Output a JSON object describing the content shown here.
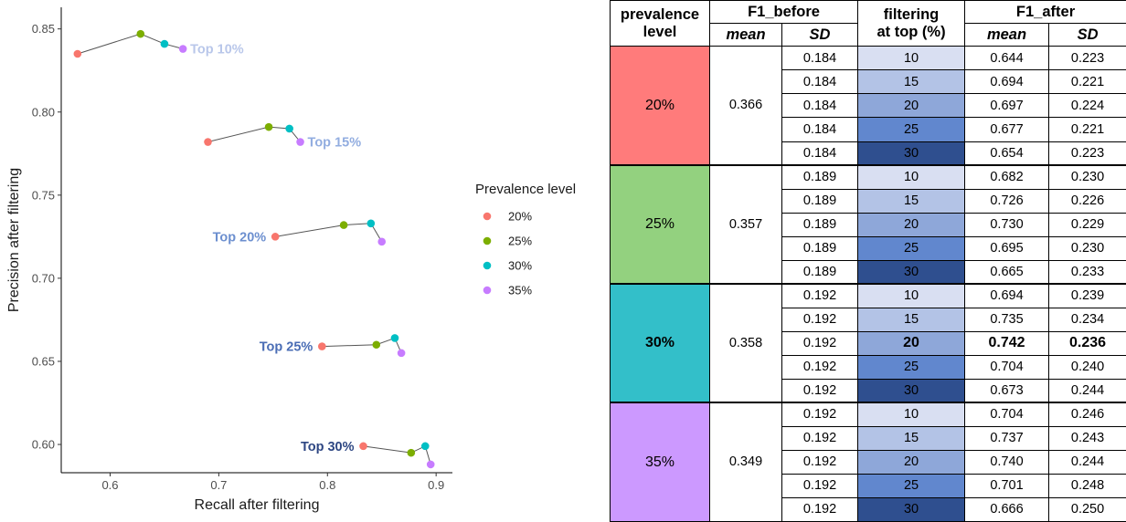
{
  "chart_data": {
    "type": "scatter",
    "xlabel": "Recall after filtering",
    "ylabel": "Precision after filtering",
    "xlim": [
      0.555,
      0.915
    ],
    "ylim": [
      0.583,
      0.863
    ],
    "x_ticks": [
      "0.6",
      "0.7",
      "0.8",
      "0.9"
    ],
    "y_ticks": [
      "0.60",
      "0.65",
      "0.70",
      "0.75",
      "0.80",
      "0.85"
    ],
    "grid": false,
    "legend_title": "Prevalence level",
    "legend_position": "right",
    "series": [
      {
        "name": "20%",
        "color": "#F8766D"
      },
      {
        "name": "25%",
        "color": "#7CAE00"
      },
      {
        "name": "30%",
        "color": "#00BFC4"
      },
      {
        "name": "35%",
        "color": "#C77CFF"
      }
    ],
    "groups": [
      {
        "label": "Top 10%",
        "color": "#B9C7EA",
        "label_side": "right",
        "points": [
          [
            0.57,
            0.835
          ],
          [
            0.628,
            0.847
          ],
          [
            0.65,
            0.841
          ],
          [
            0.667,
            0.838
          ]
        ]
      },
      {
        "label": "Top 15%",
        "color": "#92ADE0",
        "label_side": "right",
        "points": [
          [
            0.69,
            0.782
          ],
          [
            0.746,
            0.791
          ],
          [
            0.765,
            0.79
          ],
          [
            0.775,
            0.782
          ]
        ]
      },
      {
        "label": "Top 20%",
        "color": "#6C8FCF",
        "label_side": "left",
        "points": [
          [
            0.752,
            0.725
          ],
          [
            0.815,
            0.732
          ],
          [
            0.84,
            0.733
          ],
          [
            0.85,
            0.722
          ]
        ]
      },
      {
        "label": "Top 25%",
        "color": "#4A6DB5",
        "label_side": "left",
        "points": [
          [
            0.795,
            0.659
          ],
          [
            0.845,
            0.66
          ],
          [
            0.862,
            0.664
          ],
          [
            0.868,
            0.655
          ]
        ]
      },
      {
        "label": "Top 30%",
        "color": "#2E4783",
        "label_side": "left",
        "points": [
          [
            0.833,
            0.599
          ],
          [
            0.877,
            0.595
          ],
          [
            0.89,
            0.599
          ],
          [
            0.895,
            0.588
          ]
        ]
      }
    ]
  },
  "table": {
    "headers": {
      "prevalence_line1": "prevalence",
      "prevalence_line2": "level",
      "f1_before": "F1_before",
      "filtering_line1": "filtering",
      "filtering_line2": "at top (%)",
      "f1_after": "F1_after",
      "mean": "mean",
      "sd": "SD"
    },
    "filter_colors": [
      "#D9DFF2",
      "#B3C3E6",
      "#8EA7D9",
      "#6187CE",
      "#2F4F8F"
    ],
    "groups": [
      {
        "prevalence": "20%",
        "color": "#FF7B7B",
        "f1_before_mean": "0.366",
        "rows": [
          {
            "sd_before": "0.184",
            "filter": "10",
            "mean_after": "0.644",
            "sd_after": "0.223"
          },
          {
            "sd_before": "0.184",
            "filter": "15",
            "mean_after": "0.694",
            "sd_after": "0.221"
          },
          {
            "sd_before": "0.184",
            "filter": "20",
            "mean_after": "0.697",
            "sd_after": "0.224"
          },
          {
            "sd_before": "0.184",
            "filter": "25",
            "mean_after": "0.677",
            "sd_after": "0.221"
          },
          {
            "sd_before": "0.184",
            "filter": "30",
            "mean_after": "0.654",
            "sd_after": "0.223"
          }
        ]
      },
      {
        "prevalence": "25%",
        "color": "#93D17F",
        "f1_before_mean": "0.357",
        "rows": [
          {
            "sd_before": "0.189",
            "filter": "10",
            "mean_after": "0.682",
            "sd_after": "0.230"
          },
          {
            "sd_before": "0.189",
            "filter": "15",
            "mean_after": "0.726",
            "sd_after": "0.226"
          },
          {
            "sd_before": "0.189",
            "filter": "20",
            "mean_after": "0.730",
            "sd_after": "0.229"
          },
          {
            "sd_before": "0.189",
            "filter": "25",
            "mean_after": "0.695",
            "sd_after": "0.230"
          },
          {
            "sd_before": "0.189",
            "filter": "30",
            "mean_after": "0.665",
            "sd_after": "0.233"
          }
        ]
      },
      {
        "prevalence": "30%",
        "color": "#33BFC9",
        "f1_before_mean": "0.358",
        "highlight_row": 2,
        "rows": [
          {
            "sd_before": "0.192",
            "filter": "10",
            "mean_after": "0.694",
            "sd_after": "0.239"
          },
          {
            "sd_before": "0.192",
            "filter": "15",
            "mean_after": "0.735",
            "sd_after": "0.234"
          },
          {
            "sd_before": "0.192",
            "filter": "20",
            "mean_after": "0.742",
            "sd_after": "0.236"
          },
          {
            "sd_before": "0.192",
            "filter": "25",
            "mean_after": "0.704",
            "sd_after": "0.240"
          },
          {
            "sd_before": "0.192",
            "filter": "30",
            "mean_after": "0.673",
            "sd_after": "0.244"
          }
        ]
      },
      {
        "prevalence": "35%",
        "color": "#CC99FF",
        "f1_before_mean": "0.349",
        "rows": [
          {
            "sd_before": "0.192",
            "filter": "10",
            "mean_after": "0.704",
            "sd_after": "0.246"
          },
          {
            "sd_before": "0.192",
            "filter": "15",
            "mean_after": "0.737",
            "sd_after": "0.243"
          },
          {
            "sd_before": "0.192",
            "filter": "20",
            "mean_after": "0.740",
            "sd_after": "0.244"
          },
          {
            "sd_before": "0.192",
            "filter": "25",
            "mean_after": "0.701",
            "sd_after": "0.248"
          },
          {
            "sd_before": "0.192",
            "filter": "30",
            "mean_after": "0.666",
            "sd_after": "0.250"
          }
        ]
      }
    ]
  }
}
